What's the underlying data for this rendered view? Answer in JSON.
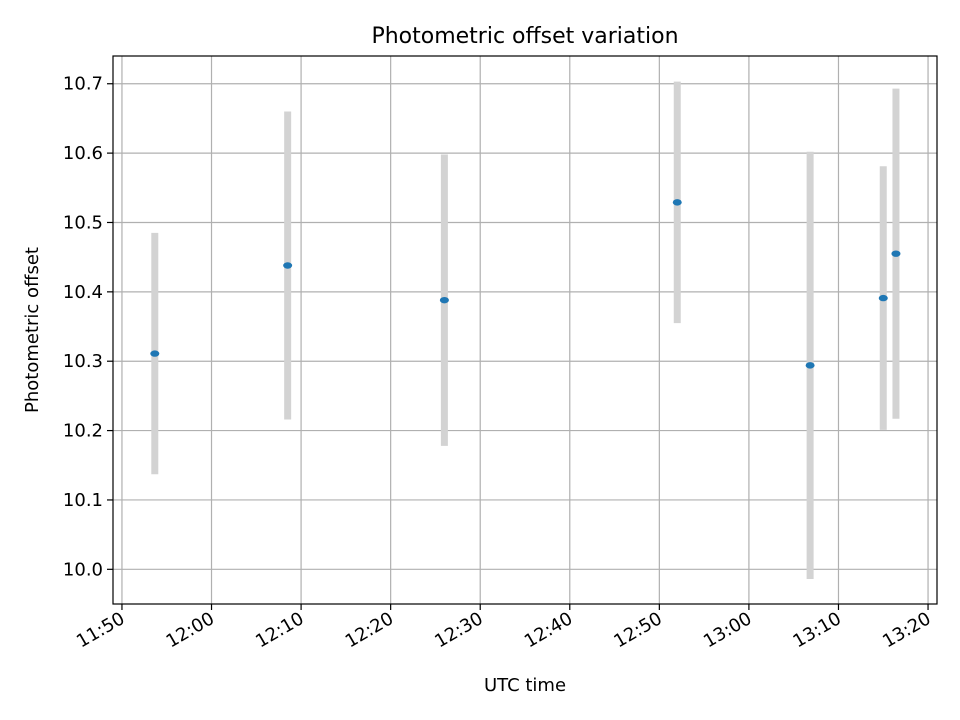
{
  "chart_data": {
    "type": "scatter",
    "title": "Photometric offset variation",
    "xlabel": "UTC time",
    "ylabel": "Photometric offset",
    "x_unit": "time (HH:MM UTC)",
    "xlim": [
      "11:49:00",
      "13:21:00"
    ],
    "ylim": [
      9.95,
      10.74
    ],
    "x_ticks": [
      "11:50",
      "12:00",
      "12:10",
      "12:20",
      "12:30",
      "12:40",
      "12:50",
      "13:00",
      "13:10",
      "13:20"
    ],
    "y_ticks": [
      "10.0",
      "10.1",
      "10.2",
      "10.3",
      "10.4",
      "10.5",
      "10.6",
      "10.7"
    ],
    "grid": true,
    "marker_color": "#1f77b4",
    "errorbar_color": "#d3d3d3",
    "points": [
      {
        "x": "11:53:40",
        "y": 10.311,
        "err": 0.174
      },
      {
        "x": "12:08:30",
        "y": 10.438,
        "err": 0.222
      },
      {
        "x": "12:26:00",
        "y": 10.388,
        "err": 0.21
      },
      {
        "x": "12:52:00",
        "y": 10.529,
        "err": 0.174
      },
      {
        "x": "13:06:50",
        "y": 10.294,
        "err": 0.308
      },
      {
        "x": "13:15:00",
        "y": 10.391,
        "err": 0.19
      },
      {
        "x": "13:16:25",
        "y": 10.455,
        "err": 0.238
      }
    ]
  }
}
